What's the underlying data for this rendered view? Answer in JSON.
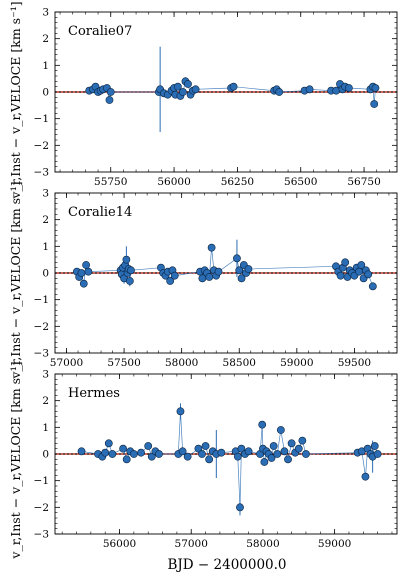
{
  "figure": {
    "shared_ylabel": "v_r,Inst − v_r,VELOCE [km s⁻¹]",
    "xlabel": "BJD  −  2400000.0"
  },
  "chart_data": [
    {
      "type": "scatter",
      "title": "Coralie07",
      "xlim": [
        55530,
        56880
      ],
      "ylim": [
        -3,
        3
      ],
      "xticks": [
        55750,
        56000,
        56250,
        56500,
        56750
      ],
      "yticks": [
        -3,
        -2,
        -1,
        0,
        1,
        2,
        3
      ],
      "ylabel": "v_r,Inst − v_r,VELOCE [km s⁻¹]",
      "colors": {
        "marker": "#2a6db5",
        "errorbar": "#2a6db5",
        "line": "#2a6db5",
        "zero": "#c0392b"
      },
      "series": [
        {
          "name": "",
          "points": [
            [
              55665,
              0.05,
              0.05
            ],
            [
              55680,
              0.1,
              0.05
            ],
            [
              55690,
              0.2,
              0.05
            ],
            [
              55700,
              0.0,
              0.05
            ],
            [
              55710,
              0.05,
              0.05
            ],
            [
              55720,
              0.1,
              0.05
            ],
            [
              55735,
              0.15,
              0.05
            ],
            [
              55745,
              -0.3,
              0.05
            ],
            [
              55750,
              0.0,
              0.05
            ],
            [
              55940,
              0.0,
              0.05
            ],
            [
              55945,
              0.1,
              1.6
            ],
            [
              55960,
              -0.05,
              0.05
            ],
            [
              55975,
              -0.1,
              0.05
            ],
            [
              55990,
              0.05,
              0.05
            ],
            [
              56000,
              0.15,
              0.05
            ],
            [
              56005,
              -0.1,
              0.05
            ],
            [
              56015,
              0.2,
              0.05
            ],
            [
              56025,
              -0.15,
              0.05
            ],
            [
              56035,
              0.0,
              0.05
            ],
            [
              56045,
              0.4,
              0.15
            ],
            [
              56055,
              0.3,
              0.05
            ],
            [
              56065,
              -0.1,
              0.05
            ],
            [
              56075,
              0.05,
              0.05
            ],
            [
              56085,
              0.1,
              0.05
            ],
            [
              56225,
              0.15,
              0.05
            ],
            [
              56235,
              0.2,
              0.05
            ],
            [
              56395,
              0.05,
              0.05
            ],
            [
              56405,
              0.1,
              0.05
            ],
            [
              56415,
              0.0,
              0.05
            ],
            [
              56515,
              0.05,
              0.05
            ],
            [
              56535,
              0.1,
              0.05
            ],
            [
              56620,
              0.05,
              0.05
            ],
            [
              56640,
              0.05,
              0.05
            ],
            [
              56655,
              0.3,
              0.05
            ],
            [
              56665,
              0.1,
              0.05
            ],
            [
              56675,
              0.2,
              0.05
            ],
            [
              56690,
              0.15,
              0.05
            ],
            [
              56775,
              0.1,
              0.05
            ],
            [
              56785,
              0.2,
              0.05
            ],
            [
              56790,
              -0.45,
              0.05
            ],
            [
              56795,
              0.15,
              0.05
            ]
          ]
        }
      ]
    },
    {
      "type": "scatter",
      "title": "Coralie14",
      "xlim": [
        56900,
        59870
      ],
      "ylim": [
        -3,
        3
      ],
      "xticks": [
        57000,
        57500,
        58000,
        58500,
        59000,
        59500
      ],
      "yticks": [
        -3,
        -2,
        -1,
        0,
        1,
        2,
        3
      ],
      "ylabel": "v_r,Inst − v_r,VELOCE [km s⁻¹]",
      "colors": {
        "marker": "#2a6db5",
        "errorbar": "#2a6db5",
        "line": "#2a6db5",
        "zero": "#c0392b"
      },
      "series": [
        {
          "name": "",
          "points": [
            [
              57090,
              0.05,
              0.05
            ],
            [
              57110,
              -0.15,
              0.05
            ],
            [
              57130,
              0.0,
              0.05
            ],
            [
              57150,
              -0.4,
              0.05
            ],
            [
              57170,
              0.3,
              0.05
            ],
            [
              57190,
              0.05,
              0.05
            ],
            [
              57470,
              0.1,
              0.05
            ],
            [
              57480,
              -0.05,
              0.05
            ],
            [
              57490,
              0.2,
              0.05
            ],
            [
              57500,
              -0.2,
              0.2
            ],
            [
              57510,
              0.3,
              0.05
            ],
            [
              57520,
              0.5,
              0.5
            ],
            [
              57530,
              0.0,
              0.05
            ],
            [
              57540,
              0.15,
              0.05
            ],
            [
              57550,
              -0.3,
              0.2
            ],
            [
              57560,
              0.1,
              0.05
            ],
            [
              57820,
              0.2,
              0.05
            ],
            [
              57840,
              0.0,
              0.05
            ],
            [
              57860,
              -0.1,
              0.05
            ],
            [
              57880,
              0.05,
              0.05
            ],
            [
              57900,
              -0.3,
              0.05
            ],
            [
              57920,
              0.1,
              0.05
            ],
            [
              57940,
              -0.1,
              0.05
            ],
            [
              58160,
              0.05,
              0.05
            ],
            [
              58180,
              -0.2,
              0.05
            ],
            [
              58200,
              0.1,
              0.05
            ],
            [
              58220,
              0.0,
              0.05
            ],
            [
              58240,
              -0.15,
              0.05
            ],
            [
              58260,
              0.95,
              0.05
            ],
            [
              58280,
              0.1,
              0.05
            ],
            [
              58300,
              -0.1,
              0.05
            ],
            [
              58320,
              0.05,
              0.05
            ],
            [
              58480,
              0.55,
              0.7
            ],
            [
              58500,
              0.1,
              0.05
            ],
            [
              58520,
              -0.2,
              0.05
            ],
            [
              58540,
              0.3,
              0.05
            ],
            [
              58560,
              0.0,
              0.05
            ],
            [
              58580,
              0.15,
              0.05
            ],
            [
              59340,
              0.25,
              0.05
            ],
            [
              59360,
              0.05,
              0.05
            ],
            [
              59380,
              -0.1,
              0.05
            ],
            [
              59400,
              0.2,
              0.05
            ],
            [
              59420,
              0.4,
              0.05
            ],
            [
              59440,
              -0.15,
              0.05
            ],
            [
              59460,
              0.1,
              0.05
            ],
            [
              59480,
              0.0,
              0.05
            ],
            [
              59500,
              -0.1,
              0.05
            ],
            [
              59520,
              0.2,
              0.05
            ],
            [
              59540,
              0.05,
              0.05
            ],
            [
              59560,
              0.3,
              0.05
            ],
            [
              59580,
              -0.2,
              0.05
            ],
            [
              59600,
              0.1,
              0.05
            ],
            [
              59620,
              -0.05,
              0.05
            ],
            [
              59660,
              -0.5,
              0.05
            ]
          ]
        }
      ]
    },
    {
      "type": "scatter",
      "title": "Hermes",
      "xlim": [
        55100,
        59870
      ],
      "ylim": [
        -3,
        3
      ],
      "xticks": [
        56000,
        57000,
        58000,
        59000
      ],
      "yticks": [
        -3,
        -2,
        -1,
        0,
        1,
        2,
        3
      ],
      "ylabel": "v_r,Inst − v_r,VELOCE [km s⁻¹]",
      "colors": {
        "marker": "#2a6db5",
        "errorbar": "#2a6db5",
        "line": "#2a6db5",
        "zero": "#c0392b"
      },
      "series": [
        {
          "name": "",
          "points": [
            [
              55470,
              0.1,
              0.05
            ],
            [
              55700,
              0.0,
              0.05
            ],
            [
              55760,
              -0.1,
              0.05
            ],
            [
              55800,
              0.05,
              0.05
            ],
            [
              55850,
              0.4,
              0.05
            ],
            [
              55900,
              0.0,
              0.05
            ],
            [
              56050,
              0.2,
              0.05
            ],
            [
              56100,
              -0.2,
              0.05
            ],
            [
              56150,
              0.1,
              0.05
            ],
            [
              56200,
              0.0,
              0.05
            ],
            [
              56300,
              0.05,
              0.05
            ],
            [
              56400,
              0.3,
              0.05
            ],
            [
              56450,
              -0.1,
              0.05
            ],
            [
              56500,
              0.1,
              0.05
            ],
            [
              56550,
              0.0,
              0.05
            ],
            [
              56820,
              0.0,
              0.05
            ],
            [
              56850,
              1.6,
              0.3
            ],
            [
              56880,
              0.1,
              0.05
            ],
            [
              56950,
              -0.1,
              0.05
            ],
            [
              57100,
              0.2,
              0.05
            ],
            [
              57150,
              0.0,
              0.05
            ],
            [
              57200,
              0.3,
              0.05
            ],
            [
              57250,
              -0.2,
              0.05
            ],
            [
              57300,
              0.1,
              0.05
            ],
            [
              57350,
              0.0,
              0.9
            ],
            [
              57420,
              0.05,
              0.05
            ],
            [
              57620,
              0.1,
              0.05
            ],
            [
              57650,
              -0.1,
              0.05
            ],
            [
              57680,
              -2.0,
              0.3
            ],
            [
              57700,
              0.2,
              0.05
            ],
            [
              57750,
              0.0,
              0.05
            ],
            [
              57800,
              0.1,
              0.05
            ],
            [
              57960,
              0.0,
              0.05
            ],
            [
              57990,
              1.1,
              0.05
            ],
            [
              58000,
              0.2,
              0.05
            ],
            [
              58020,
              -0.3,
              0.05
            ],
            [
              58050,
              0.1,
              0.05
            ],
            [
              58080,
              0.0,
              0.05
            ],
            [
              58120,
              -0.15,
              0.05
            ],
            [
              58150,
              0.3,
              0.05
            ],
            [
              58200,
              0.0,
              0.05
            ],
            [
              58250,
              0.9,
              0.05
            ],
            [
              58300,
              0.1,
              0.05
            ],
            [
              58350,
              -0.2,
              0.05
            ],
            [
              58400,
              0.4,
              0.05
            ],
            [
              58450,
              0.05,
              0.05
            ],
            [
              58500,
              0.2,
              0.05
            ],
            [
              58550,
              0.5,
              0.05
            ],
            [
              58600,
              0.0,
              0.05
            ],
            [
              59320,
              0.05,
              0.05
            ],
            [
              59380,
              0.1,
              0.05
            ],
            [
              59430,
              -0.85,
              0.05
            ],
            [
              59460,
              0.2,
              0.05
            ],
            [
              59500,
              0.0,
              0.05
            ],
            [
              59530,
              -0.1,
              0.6
            ],
            [
              59560,
              0.3,
              0.05
            ],
            [
              59600,
              0.0,
              0.05
            ]
          ]
        }
      ]
    }
  ]
}
